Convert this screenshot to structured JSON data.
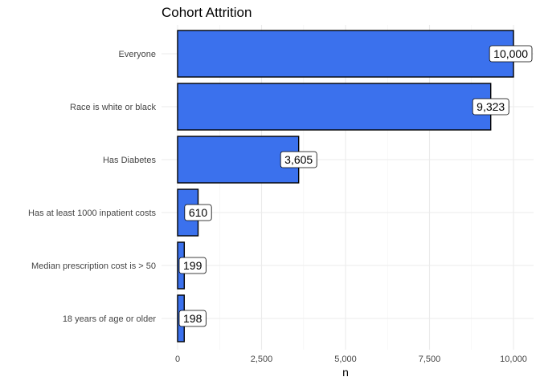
{
  "chart_data": {
    "type": "bar",
    "orientation": "horizontal",
    "title": "Cohort Attrition",
    "xlabel": "n",
    "ylabel": "",
    "categories": [
      "Everyone",
      "Race is white or black",
      "Has Diabetes",
      "Has at least 1000 inpatient costs",
      "Median prescription cost is > 50",
      "18 years of age or older"
    ],
    "values": [
      10000,
      9323,
      3605,
      610,
      199,
      198
    ],
    "data_labels": [
      "10,000",
      "9,323",
      "3,605",
      "610",
      "199",
      "198"
    ],
    "xlim": [
      0,
      10000
    ],
    "x_ticks": [
      0,
      2500,
      5000,
      7500,
      10000
    ],
    "x_tick_labels": [
      "0",
      "2,500",
      "5,000",
      "7,500",
      "10,000"
    ],
    "grid": true,
    "legend": "none",
    "bar_color": "#3b71ed",
    "bar_outline": "#000000"
  }
}
